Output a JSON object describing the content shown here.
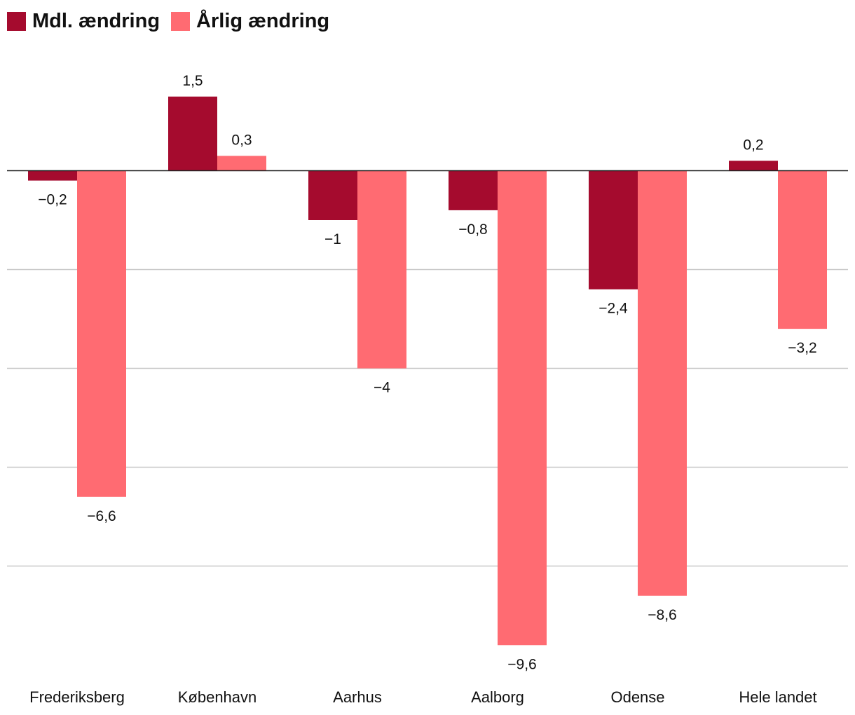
{
  "chart_data": {
    "type": "bar",
    "title": "",
    "xlabel": "",
    "ylabel": "",
    "categories": [
      "Frederiksberg",
      "København",
      "Aarhus",
      "Aalborg",
      "Odense",
      "Hele landet"
    ],
    "series": [
      {
        "name": "Mdl. ændring",
        "color": "#a50b2e",
        "values": [
          -0.2,
          1.5,
          -1,
          -0.8,
          -2.4,
          0.2
        ],
        "labels": [
          "−0,2",
          "1,5",
          "−1",
          "−0,8",
          "−2,4",
          "0,2"
        ]
      },
      {
        "name": "Årlig ændring",
        "color": "#ff6b72",
        "values": [
          -6.6,
          0.3,
          -4,
          -9.6,
          -8.6,
          -3.2
        ],
        "labels": [
          "−6,6",
          "0,3",
          "−4",
          "−9,6",
          "−8,6",
          "−3,2"
        ]
      }
    ],
    "ylim": [
      -10,
      2.5
    ],
    "gridlines": [
      0,
      -2,
      -4,
      -6,
      -8
    ],
    "grid": true,
    "legend_position": "top-left"
  }
}
